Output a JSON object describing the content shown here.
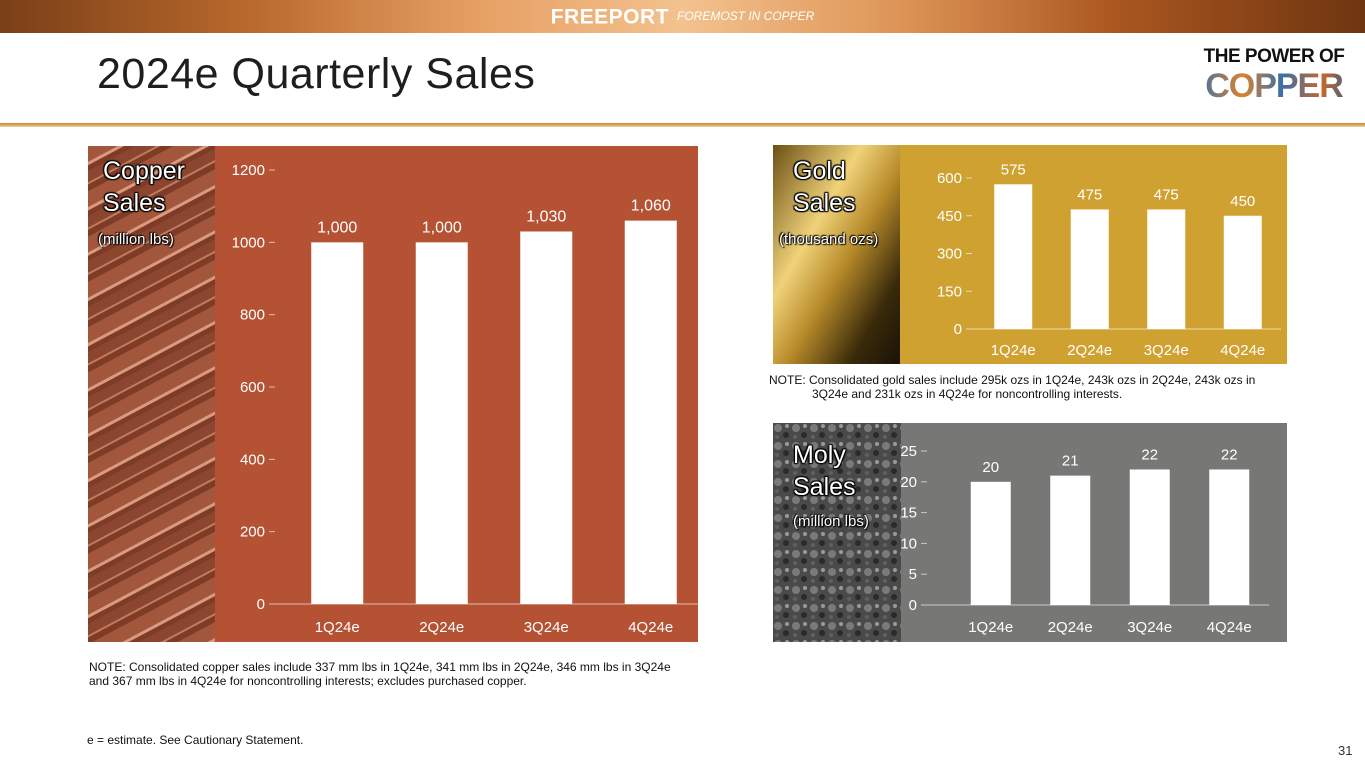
{
  "header": {
    "brand_name": "FREEPORT",
    "brand_tagline": "FOREMOST IN COPPER",
    "slide_title": "2024e Quarterly Sales",
    "logo_line1": "THE POWER OF",
    "logo_line2": "COPPER"
  },
  "copper": {
    "title_line1": "Copper",
    "title_line2": "Sales",
    "unit": "(million lbs)",
    "note": "NOTE: Consolidated copper sales include 337 mm lbs in 1Q24e, 341 mm lbs in 2Q24e, 346 mm lbs in 3Q24e and 367 mm lbs in 4Q24e for noncontrolling interests; excludes purchased copper."
  },
  "gold": {
    "title_line1": "Gold",
    "title_line2": "Sales",
    "unit": "(thousand ozs)",
    "note_line1": "NOTE: Consolidated gold sales include 295k ozs in 1Q24e, 243k ozs in 2Q24e, 243k ozs in",
    "note_line2": "3Q24e and 231k ozs in 4Q24e for noncontrolling interests."
  },
  "moly": {
    "title_line1": "Moly",
    "title_line2": "Sales",
    "unit": "(million lbs)"
  },
  "footer": {
    "estimate_note": "e = estimate. See Cautionary Statement.",
    "page_number": "31"
  },
  "colors": {
    "copper_bg": "#b45233",
    "gold_bg": "#cfa131",
    "moly_bg": "#777775",
    "bar": "#ffffff"
  },
  "chart_data": [
    {
      "id": "copper",
      "type": "bar",
      "categories": [
        "1Q24e",
        "2Q24e",
        "3Q24e",
        "4Q24e"
      ],
      "values": [
        1000,
        1000,
        1030,
        1060
      ],
      "data_labels": [
        "1,000",
        "1,000",
        "1,030",
        "1,060"
      ],
      "yticks": [
        0,
        200,
        400,
        600,
        800,
        1000,
        1200
      ],
      "ylim": [
        0,
        1200
      ],
      "grid": false
    },
    {
      "id": "gold",
      "type": "bar",
      "categories": [
        "1Q24e",
        "2Q24e",
        "3Q24e",
        "4Q24e"
      ],
      "values": [
        575,
        475,
        475,
        450
      ],
      "data_labels": [
        "575",
        "475",
        "475",
        "450"
      ],
      "yticks": [
        0,
        150,
        300,
        450,
        600
      ],
      "ylim": [
        0,
        600
      ],
      "grid": false
    },
    {
      "id": "moly",
      "type": "bar",
      "categories": [
        "1Q24e",
        "2Q24e",
        "3Q24e",
        "4Q24e"
      ],
      "values": [
        20,
        21,
        22,
        22
      ],
      "data_labels": [
        "20",
        "21",
        "22",
        "22"
      ],
      "yticks": [
        0,
        5,
        10,
        15,
        20,
        25
      ],
      "ylim": [
        0,
        25
      ],
      "grid": false
    }
  ]
}
